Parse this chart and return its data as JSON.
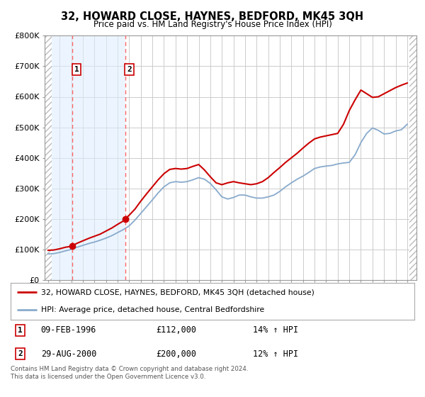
{
  "title": "32, HOWARD CLOSE, HAYNES, BEDFORD, MK45 3QH",
  "subtitle": "Price paid vs. HM Land Registry's House Price Index (HPI)",
  "legend_label_red": "32, HOWARD CLOSE, HAYNES, BEDFORD, MK45 3QH (detached house)",
  "legend_label_blue": "HPI: Average price, detached house, Central Bedfordshire",
  "transaction1_date": "09-FEB-1996",
  "transaction1_price": "£112,000",
  "transaction1_hpi": "14% ↑ HPI",
  "transaction2_date": "29-AUG-2000",
  "transaction2_price": "£200,000",
  "transaction2_hpi": "12% ↑ HPI",
  "footer": "Contains HM Land Registry data © Crown copyright and database right 2024.\nThis data is licensed under the Open Government Licence v3.0.",
  "xmin": 1993.7,
  "xmax": 2025.8,
  "ymin": 0,
  "ymax": 800000,
  "yticks": [
    0,
    100000,
    200000,
    300000,
    400000,
    500000,
    600000,
    700000,
    800000
  ],
  "ytick_labels": [
    "£0",
    "£100K",
    "£200K",
    "£300K",
    "£400K",
    "£500K",
    "£600K",
    "£700K",
    "£800K"
  ],
  "transaction1_x": 1996.1,
  "transaction1_y": 112000,
  "transaction2_x": 2000.65,
  "transaction2_y": 200000,
  "hatch_left_xmax": 1994.3,
  "hatch_right_xmin": 2025.2,
  "shade_xmin": 1994.3,
  "shade_xmax": 2000.65,
  "hpi_x": [
    1994.0,
    1994.5,
    1995.0,
    1995.5,
    1996.0,
    1996.5,
    1997.0,
    1997.5,
    1998.0,
    1998.5,
    1999.0,
    1999.5,
    2000.0,
    2000.5,
    2001.0,
    2001.5,
    2002.0,
    2002.5,
    2003.0,
    2003.5,
    2004.0,
    2004.5,
    2005.0,
    2005.5,
    2006.0,
    2006.5,
    2007.0,
    2007.5,
    2008.0,
    2008.5,
    2009.0,
    2009.5,
    2010.0,
    2010.5,
    2011.0,
    2011.5,
    2012.0,
    2012.5,
    2013.0,
    2013.5,
    2014.0,
    2014.5,
    2015.0,
    2015.5,
    2016.0,
    2016.5,
    2017.0,
    2017.5,
    2018.0,
    2018.5,
    2019.0,
    2019.5,
    2020.0,
    2020.5,
    2021.0,
    2021.5,
    2022.0,
    2022.5,
    2023.0,
    2023.5,
    2024.0,
    2024.5,
    2025.0
  ],
  "hpi_values": [
    85000,
    86000,
    90000,
    95000,
    100000,
    107000,
    113000,
    119000,
    124000,
    130000,
    137000,
    145000,
    155000,
    165000,
    177000,
    196000,
    218000,
    240000,
    262000,
    285000,
    305000,
    318000,
    322000,
    320000,
    322000,
    328000,
    335000,
    330000,
    316000,
    295000,
    272000,
    265000,
    270000,
    278000,
    278000,
    272000,
    268000,
    268000,
    272000,
    278000,
    290000,
    305000,
    318000,
    330000,
    340000,
    352000,
    365000,
    370000,
    373000,
    375000,
    380000,
    383000,
    385000,
    410000,
    450000,
    480000,
    498000,
    490000,
    478000,
    480000,
    488000,
    492000,
    510000
  ],
  "price_x": [
    1994.0,
    1994.5,
    1995.0,
    1995.5,
    1996.0,
    1996.1,
    1996.5,
    1997.0,
    1997.5,
    1998.0,
    1998.5,
    1999.0,
    1999.5,
    2000.0,
    2000.5,
    2000.65,
    2001.0,
    2001.5,
    2002.0,
    2002.5,
    2003.0,
    2003.5,
    2004.0,
    2004.5,
    2005.0,
    2005.5,
    2006.0,
    2006.5,
    2007.0,
    2007.5,
    2008.0,
    2008.5,
    2009.0,
    2009.5,
    2010.0,
    2010.5,
    2011.0,
    2011.5,
    2012.0,
    2012.5,
    2013.0,
    2013.5,
    2014.0,
    2014.5,
    2015.0,
    2015.5,
    2016.0,
    2016.5,
    2017.0,
    2017.5,
    2018.0,
    2018.5,
    2019.0,
    2019.5,
    2020.0,
    2020.5,
    2021.0,
    2021.5,
    2022.0,
    2022.5,
    2023.0,
    2023.5,
    2024.0,
    2024.5,
    2025.0
  ],
  "price_values": [
    97000,
    98000,
    102000,
    107000,
    110000,
    112000,
    120000,
    128000,
    136000,
    143000,
    150000,
    160000,
    170000,
    182000,
    193000,
    200000,
    212000,
    232000,
    258000,
    282000,
    305000,
    328000,
    348000,
    362000,
    365000,
    363000,
    365000,
    372000,
    378000,
    360000,
    338000,
    318000,
    312000,
    318000,
    322000,
    318000,
    315000,
    312000,
    315000,
    322000,
    335000,
    352000,
    368000,
    385000,
    400000,
    415000,
    432000,
    448000,
    462000,
    468000,
    472000,
    476000,
    480000,
    510000,
    555000,
    590000,
    622000,
    610000,
    598000,
    600000,
    610000,
    620000,
    630000,
    638000,
    645000
  ],
  "background_color": "#ffffff",
  "grid_color": "#cccccc",
  "red_line_color": "#cc0000",
  "blue_line_color": "#88aacc",
  "shade_color": "#ddeeff",
  "dashed_color": "#ff6666",
  "marker_color": "#cc0000",
  "hatch_color": "#bbbbbb"
}
